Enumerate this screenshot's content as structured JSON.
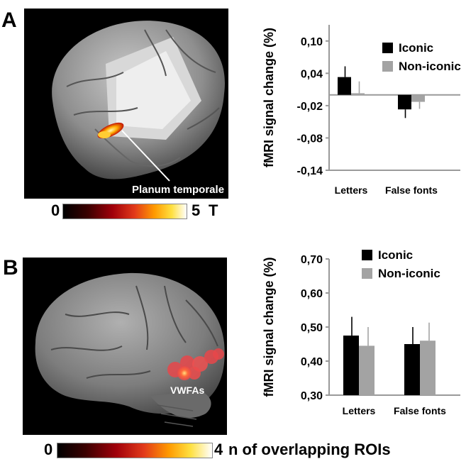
{
  "panels": [
    {
      "letter": "A",
      "brain_label": "Planum temporale",
      "colorbar": {
        "min_label": "0",
        "max_label": "5",
        "unit": "T"
      }
    },
    {
      "letter": "B",
      "brain_label": "VWFAs",
      "colorbar": {
        "min_label": "0",
        "max_label": "4",
        "unit": "n of overlapping ROIs"
      }
    }
  ],
  "colors": {
    "iconic": "#000000",
    "non_iconic": "#a3a3a3",
    "background": "#000000"
  },
  "chart_data": [
    {
      "type": "bar",
      "categories": [
        "Letters",
        "False fonts"
      ],
      "series": [
        {
          "name": "Iconic",
          "values": [
            0.033,
            -0.027
          ],
          "errors": [
            0.02,
            0.016
          ]
        },
        {
          "name": "Non-iconic",
          "values": [
            0.003,
            -0.013
          ],
          "errors": [
            0.022,
            0.013
          ]
        }
      ],
      "ylabel": "fMRI signal change (%)",
      "yticks": [
        "0,10",
        "0,04",
        "-0,02",
        "-0,08",
        "-0,14"
      ],
      "ytick_values": [
        0.1,
        0.04,
        -0.02,
        -0.08,
        -0.14
      ],
      "ylim": [
        -0.14,
        0.13
      ],
      "baseline": 0,
      "legend_position": "top-right",
      "grid": false
    },
    {
      "type": "bar",
      "categories": [
        "Letters",
        "False fonts"
      ],
      "series": [
        {
          "name": "Iconic",
          "values": [
            0.475,
            0.45
          ],
          "errors": [
            0.055,
            0.05
          ]
        },
        {
          "name": "Non-iconic",
          "values": [
            0.445,
            0.46
          ],
          "errors": [
            0.055,
            0.053
          ]
        }
      ],
      "ylabel": "fMRI signal change (%)",
      "yticks": [
        "0,70",
        "0,60",
        "0,50",
        "0,40",
        "0,30"
      ],
      "ytick_values": [
        0.7,
        0.6,
        0.5,
        0.4,
        0.3
      ],
      "ylim": [
        0.3,
        0.7
      ],
      "baseline": 0.3,
      "legend_position": "top-right",
      "grid": false
    }
  ]
}
